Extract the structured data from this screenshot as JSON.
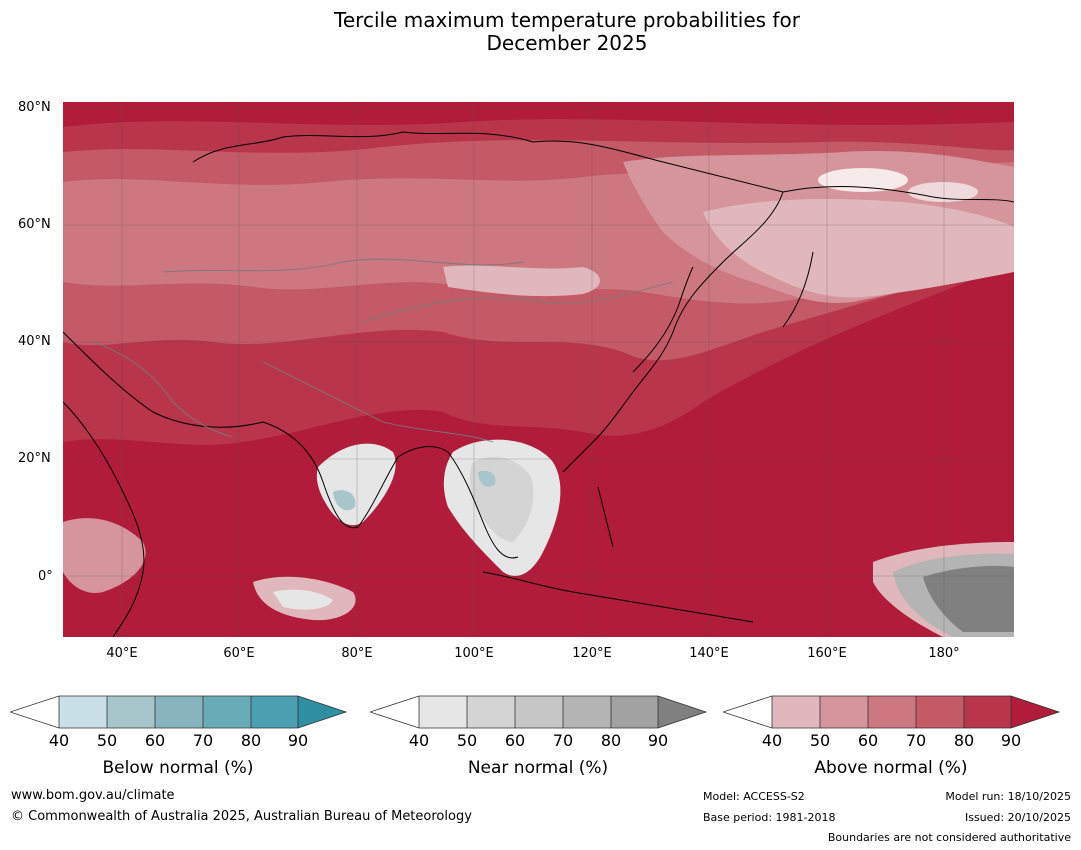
{
  "title_line1": "Tercile maximum temperature probabilities for",
  "title_line2": "December 2025",
  "map": {
    "lat_labels": [
      "80°N",
      "60°N",
      "40°N",
      "20°N",
      "0°"
    ],
    "lon_labels": [
      "40°E",
      "60°E",
      "80°E",
      "100°E",
      "120°E",
      "140°E",
      "160°E",
      "180°"
    ]
  },
  "colorbars": [
    {
      "title": "Below normal (%)",
      "ticks": [
        "40",
        "50",
        "60",
        "70",
        "80",
        "90"
      ],
      "colors": [
        "#ffffff",
        "#c9e1e6",
        "#a7c6cc",
        "#88b4bf",
        "#6aabb8",
        "#4a9fb0",
        "#2e8ea2"
      ]
    },
    {
      "title": "Near normal (%)",
      "ticks": [
        "40",
        "50",
        "60",
        "70",
        "80",
        "90"
      ],
      "colors": [
        "#ffffff",
        "#e6e6e6",
        "#d4d4d4",
        "#c6c6c6",
        "#b4b4b4",
        "#a2a2a2",
        "#808080"
      ]
    },
    {
      "title": "Above normal (%)",
      "ticks": [
        "40",
        "50",
        "60",
        "70",
        "80",
        "90"
      ],
      "colors": [
        "#ffffff",
        "#e0b7bc",
        "#d6959c",
        "#cd7780",
        "#c45a66",
        "#b8354a",
        "#b01c3a"
      ]
    }
  ],
  "footer": {
    "website": "www.bom.gov.au/climate",
    "copyright": "© Commonwealth of Australia 2025, Australian Bureau of Meteorology",
    "model": "Model: ACCESS-S2",
    "base_period": "Base period: 1981-2018",
    "model_run": "Model run: 18/10/2025",
    "issued": "Issued: 20/10/2025",
    "disclaimer": "Boundaries are not considered authoritative"
  }
}
